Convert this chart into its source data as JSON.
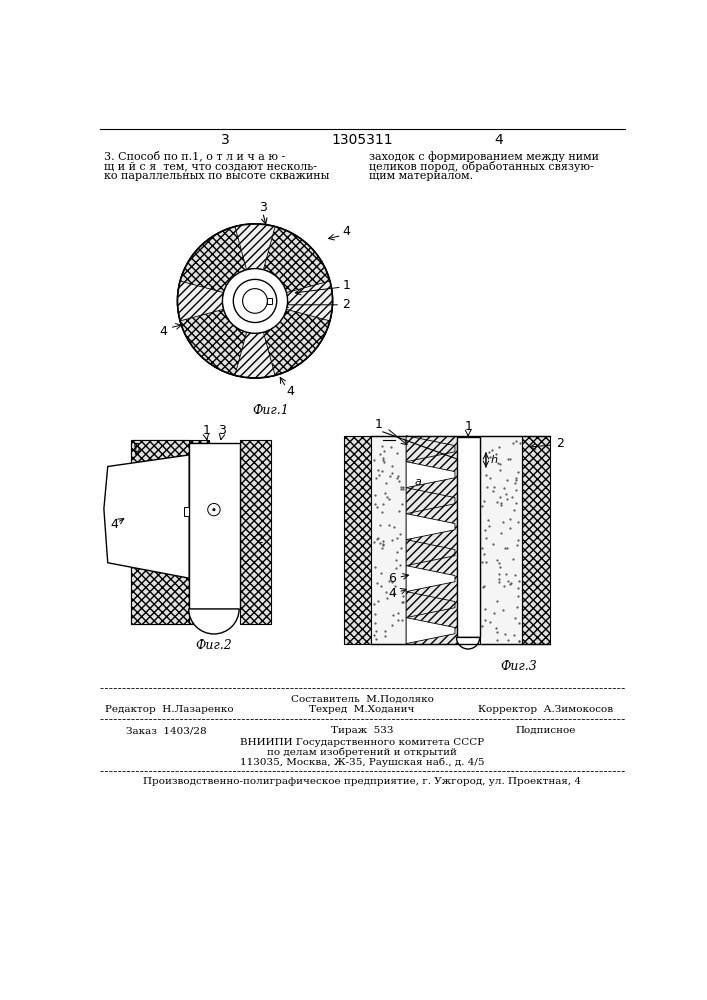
{
  "page_number_left": "3",
  "page_number_center": "1305311",
  "page_number_right": "4",
  "text_left_lines": [
    "3. Способ по п.1, о т л и ч а ю -",
    "щ и й с я  тем, что создают несколь-",
    "ко параллельных по высоте скважины"
  ],
  "text_right_lines": [
    "заходок с формированием между ними",
    "целиков пород, обработанных связую-",
    "щим материалом."
  ],
  "fig1_label": "Фиг.1",
  "fig2_label": "Фиг.2",
  "fig3_label": "Фиг.3",
  "footer_composer": "Составитель  М.Подоляко",
  "footer_editor": "Редактор  Н.Лазаренко",
  "footer_techred": "Техред  М.Ходанич",
  "footer_corrector": "Корректор  А.Зимокосов",
  "footer_order": "Заказ  1403/28",
  "footer_tirazh": "Тираж  533",
  "footer_podp": "Подписное",
  "footer_vniip1": "ВНИИПИ Государственного комитета СССР",
  "footer_vniip2": "по делам изобретений и открытий",
  "footer_vniip3": "113035, Москва, Ж-35, Раушская наб., д. 4/5",
  "footer_bottom": "Производственно-полиграфическое предприятие, г. Ужгород, ул. Проектная, 4",
  "bg_color": "#ffffff"
}
